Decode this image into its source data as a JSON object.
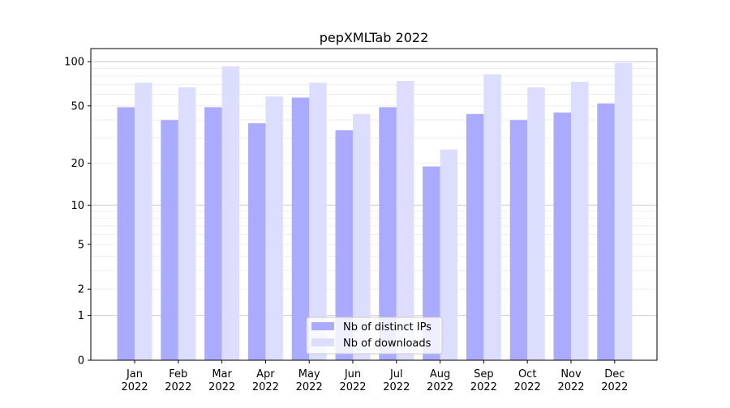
{
  "chart_data": {
    "type": "bar",
    "title": "pepXMLTab 2022",
    "xlabel": "",
    "ylabel": "",
    "yscale": "log(y+1)",
    "ylim": [
      0,
      120
    ],
    "yticks": [
      0,
      1,
      2,
      5,
      10,
      20,
      50,
      100
    ],
    "grid": true,
    "legend_placement": "lower-center",
    "categories": [
      "Jan\n2022",
      "Feb\n2022",
      "Mar\n2022",
      "Apr\n2022",
      "May\n2022",
      "Jun\n2022",
      "Jul\n2022",
      "Aug\n2022",
      "Sep\n2022",
      "Oct\n2022",
      "Nov\n2022",
      "Dec\n2022"
    ],
    "series": [
      {
        "name": "Nb of distinct IPs",
        "color": "#aaaaff",
        "values": [
          49,
          40,
          49,
          38,
          57,
          34,
          49,
          19,
          44,
          40,
          45,
          52
        ]
      },
      {
        "name": "Nb of downloads",
        "color": "#ddddff",
        "values": [
          72,
          67,
          93,
          58,
          72,
          44,
          74,
          25,
          82,
          67,
          73,
          98
        ]
      }
    ]
  }
}
